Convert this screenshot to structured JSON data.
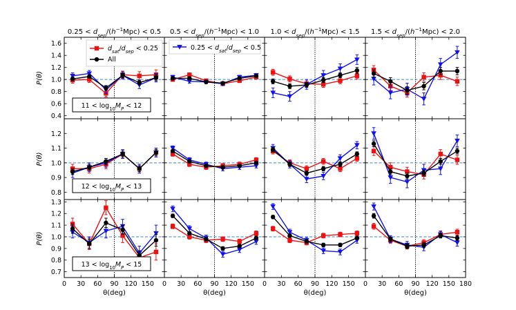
{
  "chart_data": {
    "type": "line",
    "x_ticks": [
      0,
      30,
      60,
      90,
      120,
      150,
      180
    ],
    "xlim": [
      0,
      180
    ],
    "vline_x": 90,
    "ref_line_y": 1.0,
    "x_label": "θ(deg)",
    "y_label": "P(θ)",
    "column_titles": [
      "0.25 < d_sep/(h⁻¹Mpc) < 0.5",
      "0.5 < d_sep/(h⁻¹Mpc) < 1.0",
      "1.0 < d_sep/(h⁻¹Mpc) < 1.5",
      "1.5 < d_sep/(h⁻¹Mpc) < 2.0"
    ],
    "row_labels": [
      "11 < log₁₀M_P < 12",
      "12 < log₁₀M_P < 13",
      "13 < log₁₀M_P < 15"
    ],
    "row_ylims": [
      [
        0.35,
        1.7
      ],
      [
        0.75,
        1.3
      ],
      [
        0.65,
        1.32
      ]
    ],
    "row_yticks": [
      [
        0.4,
        0.6,
        0.8,
        1.0,
        1.2,
        1.4,
        1.6
      ],
      [
        0.8,
        0.9,
        1.0,
        1.1,
        1.2
      ],
      [
        0.7,
        0.8,
        0.9,
        1.0,
        1.1,
        1.2,
        1.3
      ]
    ],
    "x": [
      15,
      45,
      75,
      105,
      135,
      165
    ],
    "series_styles": {
      "red": {
        "name": "d_sat/d_sep < 0.25",
        "color": "#ee1111",
        "marker": "square"
      },
      "blue": {
        "name": "0.25 < d_sat/d_sep < 0.5",
        "color": "#1111ee",
        "marker": "triangle-down"
      },
      "black": {
        "name": "All",
        "color": "#000000",
        "marker": "circle"
      }
    },
    "legend_entries": [
      "red",
      "black",
      "blue"
    ],
    "panels": [
      [
        {
          "red": [
            0.99,
            1.0,
            0.77,
            1.08,
            1.06,
            1.08
          ],
          "red_err": [
            0.05,
            0.05,
            0.06,
            0.06,
            0.07,
            0.08
          ],
          "blue": [
            1.06,
            1.1,
            0.83,
            1.07,
            0.91,
            1.03
          ],
          "blue_err": [
            0.05,
            0.05,
            0.06,
            0.06,
            0.06,
            0.07
          ],
          "black": [
            1.01,
            1.05,
            0.86,
            1.07,
            0.95,
            1.03
          ],
          "black_err": [
            0.03,
            0.03,
            0.04,
            0.04,
            0.04,
            0.05
          ]
        },
        {
          "red": [
            1.0,
            1.08,
            0.98,
            0.93,
            0.98,
            1.04
          ],
          "red_err": [
            0.03,
            0.03,
            0.03,
            0.03,
            0.03,
            0.03
          ],
          "blue": [
            1.04,
            0.97,
            0.96,
            0.93,
            1.04,
            1.07
          ],
          "blue_err": [
            0.03,
            0.03,
            0.03,
            0.03,
            0.03,
            0.03
          ],
          "black": [
            1.02,
            1.02,
            0.96,
            0.94,
            1.02,
            1.06
          ],
          "black_err": [
            0.02,
            0.02,
            0.02,
            0.02,
            0.02,
            0.02
          ]
        },
        {
          "red": [
            1.12,
            1.01,
            0.93,
            0.92,
            0.98,
            1.06
          ],
          "red_err": [
            0.05,
            0.05,
            0.05,
            0.05,
            0.05,
            0.05
          ],
          "blue": [
            0.78,
            0.72,
            0.92,
            1.07,
            1.18,
            1.33
          ],
          "blue_err": [
            0.08,
            0.08,
            0.08,
            0.08,
            0.08,
            0.08
          ],
          "black": [
            0.97,
            0.89,
            0.91,
            0.99,
            1.07,
            1.15
          ],
          "black_err": [
            0.04,
            0.04,
            0.04,
            0.04,
            0.04,
            0.05
          ]
        },
        {
          "red": [
            1.16,
            0.89,
            0.78,
            1.04,
            1.07,
            0.97
          ],
          "red_err": [
            0.07,
            0.07,
            0.07,
            0.07,
            0.07,
            0.07
          ],
          "blue": [
            1.01,
            0.78,
            0.84,
            0.68,
            1.25,
            1.45
          ],
          "blue_err": [
            0.1,
            0.1,
            0.1,
            0.1,
            0.1,
            0.1
          ],
          "black": [
            1.1,
            0.97,
            0.82,
            0.89,
            1.14,
            1.14
          ],
          "black_err": [
            0.06,
            0.06,
            0.06,
            0.06,
            0.06,
            0.06
          ]
        }
      ],
      [
        {
          "red": [
            0.96,
            0.96,
            0.99,
            1.06,
            0.96,
            1.07
          ],
          "red_err": [
            0.03,
            0.03,
            0.03,
            0.03,
            0.03,
            0.03
          ],
          "blue": [
            0.93,
            0.97,
            1.0,
            1.06,
            0.96,
            1.07
          ],
          "blue_err": [
            0.03,
            0.03,
            0.03,
            0.03,
            0.03,
            0.03
          ],
          "black": [
            0.94,
            0.97,
            1.01,
            1.06,
            0.96,
            1.07
          ],
          "black_err": [
            0.02,
            0.02,
            0.02,
            0.02,
            0.02,
            0.02
          ]
        },
        {
          "red": [
            1.06,
            0.99,
            0.97,
            0.98,
            0.99,
            1.02
          ],
          "red_err": [
            0.015,
            0.015,
            0.015,
            0.015,
            0.015,
            0.015
          ],
          "blue": [
            1.1,
            1.02,
            0.99,
            0.96,
            0.97,
            0.98
          ],
          "blue_err": [
            0.015,
            0.015,
            0.015,
            0.015,
            0.015,
            0.015
          ],
          "black": [
            1.08,
            1.01,
            0.98,
            0.97,
            0.98,
            1.0
          ],
          "black_err": [
            0.01,
            0.01,
            0.01,
            0.01,
            0.01,
            0.01
          ]
        },
        {
          "red": [
            1.08,
            1.0,
            0.96,
            1.01,
            0.96,
            1.03
          ],
          "red_err": [
            0.02,
            0.02,
            0.02,
            0.02,
            0.02,
            0.02
          ],
          "blue": [
            1.1,
            0.99,
            0.89,
            0.91,
            1.03,
            1.12
          ],
          "blue_err": [
            0.025,
            0.025,
            0.025,
            0.025,
            0.025,
            0.025
          ],
          "black": [
            1.09,
            0.99,
            0.93,
            0.96,
            0.99,
            1.06
          ],
          "black_err": [
            0.015,
            0.015,
            0.015,
            0.015,
            0.015,
            0.015
          ]
        },
        {
          "red": [
            1.08,
            0.97,
            0.94,
            0.92,
            1.06,
            1.02
          ],
          "red_err": [
            0.03,
            0.03,
            0.03,
            0.03,
            0.03,
            0.03
          ],
          "blue": [
            1.2,
            0.9,
            0.87,
            0.95,
            0.96,
            1.15
          ],
          "blue_err": [
            0.04,
            0.04,
            0.04,
            0.04,
            0.04,
            0.04
          ],
          "black": [
            1.13,
            0.94,
            0.91,
            0.93,
            1.01,
            1.08
          ],
          "black_err": [
            0.02,
            0.02,
            0.02,
            0.02,
            0.02,
            0.02
          ]
        }
      ],
      [
        {
          "red": [
            1.11,
            0.94,
            1.25,
            1.01,
            0.82,
            0.87
          ],
          "red_err": [
            0.05,
            0.05,
            0.06,
            0.06,
            0.06,
            0.07
          ],
          "blue": [
            1.04,
            0.95,
            1.05,
            1.09,
            0.86,
            1.03
          ],
          "blue_err": [
            0.05,
            0.05,
            0.06,
            0.06,
            0.06,
            0.07
          ],
          "black": [
            1.07,
            0.94,
            1.12,
            1.06,
            0.84,
            0.97
          ],
          "black_err": [
            0.04,
            0.04,
            0.04,
            0.04,
            0.04,
            0.05
          ]
        },
        {
          "red": [
            1.09,
            1.0,
            0.97,
            0.98,
            0.96,
            1.03
          ],
          "red_err": [
            0.02,
            0.02,
            0.02,
            0.02,
            0.02,
            0.02
          ],
          "blue": [
            1.24,
            1.07,
            0.99,
            0.85,
            0.89,
            0.96
          ],
          "blue_err": [
            0.025,
            0.025,
            0.025,
            0.025,
            0.025,
            0.025
          ],
          "black": [
            1.18,
            1.03,
            0.98,
            0.9,
            0.92,
            0.99
          ],
          "black_err": [
            0.015,
            0.015,
            0.015,
            0.015,
            0.015,
            0.015
          ]
        },
        {
          "red": [
            1.07,
            0.97,
            0.95,
            1.01,
            1.02,
            1.03
          ],
          "red_err": [
            0.02,
            0.02,
            0.02,
            0.02,
            0.02,
            0.02
          ],
          "blue": [
            1.26,
            1.04,
            0.97,
            0.88,
            0.87,
            0.97
          ],
          "blue_err": [
            0.025,
            0.025,
            0.025,
            0.025,
            0.025,
            0.025
          ],
          "black": [
            1.17,
            1.01,
            0.96,
            0.93,
            0.93,
            0.99
          ],
          "black_err": [
            0.015,
            0.015,
            0.015,
            0.015,
            0.015,
            0.015
          ]
        },
        {
          "red": [
            1.09,
            0.97,
            0.92,
            0.95,
            1.02,
            1.04
          ],
          "red_err": [
            0.025,
            0.025,
            0.025,
            0.025,
            0.025,
            0.025
          ],
          "blue": [
            1.26,
            0.98,
            0.93,
            0.91,
            1.02,
            0.95
          ],
          "blue_err": [
            0.03,
            0.03,
            0.03,
            0.03,
            0.03,
            0.03
          ],
          "black": [
            1.18,
            0.98,
            0.92,
            0.93,
            1.01,
            0.99
          ],
          "black_err": [
            0.02,
            0.02,
            0.02,
            0.02,
            0.02,
            0.02
          ]
        }
      ]
    ]
  }
}
